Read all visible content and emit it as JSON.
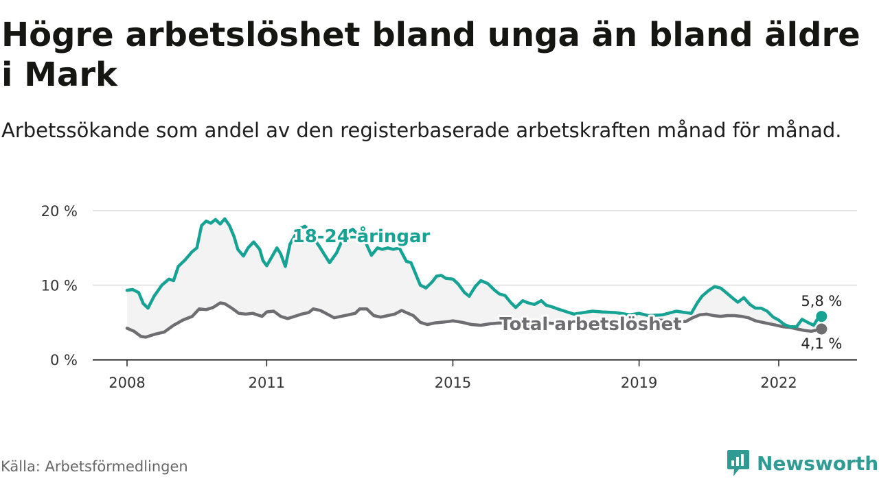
{
  "title": "Högre arbetslöshet bland unga än bland äldre i Mark",
  "subtitle": "Arbetssökande som andel av den registerbaserade arbetskraften månad för månad.",
  "source": "Källa: Arbetsförmedlingen",
  "brand": "Newsworthy",
  "colors": {
    "youth": "#16a394",
    "total": "#6d6d72",
    "fill": "#f3f3f3",
    "grid": "#d9d9d9",
    "brand": "#2f9b93"
  },
  "chart_data": {
    "type": "line",
    "title": "Högre arbetslöshet bland unga än bland äldre i Mark",
    "xlabel": "",
    "ylabel": "",
    "ylim": [
      0,
      20
    ],
    "xlim": [
      2008.0,
      2023.0
    ],
    "y_ticks": [
      0,
      10,
      20
    ],
    "y_tick_labels": [
      "0 %",
      "10 %",
      "20 %"
    ],
    "x_ticks": [
      2008,
      2011,
      2015,
      2019,
      2022
    ],
    "x_tick_labels": [
      "2008",
      "2011",
      "2015",
      "2019",
      "2022"
    ],
    "series": [
      {
        "name": "18-24-åringar",
        "label": "18-24-åringar",
        "end_label": "5,8 %",
        "x": [
          2008.0,
          2008.12,
          2008.25,
          2008.35,
          2008.45,
          2008.58,
          2008.75,
          2008.9,
          2009.0,
          2009.1,
          2009.25,
          2009.4,
          2009.5,
          2009.6,
          2009.7,
          2009.8,
          2009.9,
          2010.0,
          2010.1,
          2010.2,
          2010.3,
          2010.38,
          2010.5,
          2010.6,
          2010.72,
          2010.85,
          2010.92,
          2011.0,
          2011.12,
          2011.22,
          2011.3,
          2011.4,
          2011.5,
          2011.62,
          2011.72,
          2011.82,
          2011.92,
          2012.0,
          2012.12,
          2012.25,
          2012.35,
          2012.5,
          2012.62,
          2012.72,
          2012.85,
          2013.0,
          2013.12,
          2013.25,
          2013.38,
          2013.48,
          2013.6,
          2013.72,
          2013.85,
          2014.0,
          2014.1,
          2014.2,
          2014.3,
          2014.42,
          2014.55,
          2014.65,
          2014.75,
          2014.85,
          2015.0,
          2015.12,
          2015.25,
          2015.35,
          2015.48,
          2015.6,
          2015.75,
          2015.9,
          2016.0,
          2016.12,
          2016.25,
          2016.35,
          2016.5,
          2016.62,
          2016.75,
          2016.9,
          2017.0,
          2017.12,
          2017.25,
          2017.4,
          2017.6,
          2017.8,
          2018.0,
          2018.2,
          2018.5,
          2018.8,
          2019.0,
          2019.2,
          2019.5,
          2019.8,
          2020.0,
          2020.12,
          2020.25,
          2020.35,
          2020.5,
          2020.62,
          2020.75,
          2020.85,
          2021.0,
          2021.12,
          2021.25,
          2021.38,
          2021.5,
          2021.62,
          2021.75,
          2021.88,
          2022.0,
          2022.12,
          2022.25,
          2022.38,
          2022.5,
          2022.62,
          2022.75,
          2022.85,
          2022.92
        ],
        "values": [
          9.3,
          9.4,
          9.0,
          7.5,
          6.9,
          8.5,
          10.0,
          10.8,
          10.6,
          12.5,
          13.4,
          14.5,
          15.0,
          18.0,
          18.6,
          18.3,
          18.8,
          18.2,
          18.9,
          18.0,
          16.5,
          14.8,
          13.9,
          15.0,
          15.8,
          14.8,
          13.3,
          12.6,
          13.9,
          15.0,
          14.2,
          12.5,
          15.5,
          16.8,
          17.6,
          17.9,
          17.2,
          16.3,
          15.3,
          14.0,
          13.0,
          14.3,
          16.0,
          17.0,
          17.5,
          16.5,
          15.8,
          14.0,
          15.0,
          14.8,
          15.0,
          14.8,
          15.0,
          13.2,
          13.0,
          11.5,
          10.0,
          9.6,
          10.4,
          11.2,
          11.3,
          10.9,
          10.8,
          10.1,
          9.0,
          8.5,
          9.8,
          10.6,
          10.2,
          9.3,
          8.8,
          8.6,
          7.6,
          7.0,
          7.9,
          7.6,
          7.4,
          7.9,
          7.3,
          7.1,
          6.8,
          6.5,
          6.1,
          6.3,
          6.5,
          6.4,
          6.3,
          6.0,
          6.2,
          5.9,
          6.0,
          6.5,
          6.3,
          6.2,
          7.6,
          8.5,
          9.3,
          9.8,
          9.6,
          9.1,
          8.3,
          7.7,
          8.3,
          7.4,
          6.9,
          6.9,
          6.5,
          5.7,
          5.3,
          4.7,
          4.4,
          4.4,
          5.4,
          5.0,
          4.6,
          5.6,
          5.8
        ]
      },
      {
        "name": "Total arbetslöshet",
        "label": "Total arbetslöshet",
        "end_label": "4,1 %",
        "x": [
          2008.0,
          2008.15,
          2008.3,
          2008.4,
          2008.6,
          2008.8,
          2009.0,
          2009.2,
          2009.4,
          2009.55,
          2009.7,
          2009.85,
          2010.0,
          2010.1,
          2010.25,
          2010.4,
          2010.55,
          2010.7,
          2010.9,
          2011.0,
          2011.15,
          2011.3,
          2011.45,
          2011.6,
          2011.75,
          2011.9,
          2012.0,
          2012.15,
          2012.3,
          2012.45,
          2012.6,
          2012.75,
          2012.9,
          2013.0,
          2013.15,
          2013.3,
          2013.45,
          2013.6,
          2013.75,
          2013.9,
          2014.0,
          2014.15,
          2014.3,
          2014.45,
          2014.6,
          2014.75,
          2014.9,
          2015.0,
          2015.2,
          2015.4,
          2015.6,
          2015.8,
          2016.0,
          2016.25,
          2016.5,
          2016.75,
          2017.0,
          2017.3,
          2017.6,
          2017.9,
          2018.2,
          2018.5,
          2018.8,
          2019.1,
          2019.4,
          2019.7,
          2020.0,
          2020.15,
          2020.3,
          2020.45,
          2020.6,
          2020.75,
          2020.9,
          2021.05,
          2021.2,
          2021.35,
          2021.5,
          2021.65,
          2021.8,
          2021.95,
          2022.1,
          2022.25,
          2022.4,
          2022.55,
          2022.7,
          2022.85,
          2022.92
        ],
        "values": [
          4.2,
          3.8,
          3.1,
          3.0,
          3.4,
          3.7,
          4.6,
          5.3,
          5.8,
          6.8,
          6.7,
          7.0,
          7.6,
          7.5,
          6.9,
          6.2,
          6.1,
          6.2,
          5.8,
          6.4,
          6.5,
          5.8,
          5.5,
          5.8,
          6.1,
          6.3,
          6.8,
          6.6,
          6.1,
          5.6,
          5.8,
          6.0,
          6.2,
          6.8,
          6.8,
          5.9,
          5.7,
          5.9,
          6.1,
          6.6,
          6.3,
          5.9,
          5.0,
          4.7,
          4.9,
          5.0,
          5.1,
          5.2,
          5.0,
          4.7,
          4.6,
          4.8,
          4.9,
          4.9,
          4.7,
          4.6,
          4.9,
          4.8,
          4.9,
          4.8,
          5.0,
          5.0,
          4.9,
          5.1,
          5.3,
          5.2,
          5.1,
          5.6,
          6.0,
          6.1,
          5.9,
          5.8,
          5.9,
          5.9,
          5.8,
          5.6,
          5.2,
          5.0,
          4.8,
          4.6,
          4.4,
          4.3,
          4.1,
          3.9,
          3.8,
          4.0,
          4.1
        ]
      }
    ]
  }
}
